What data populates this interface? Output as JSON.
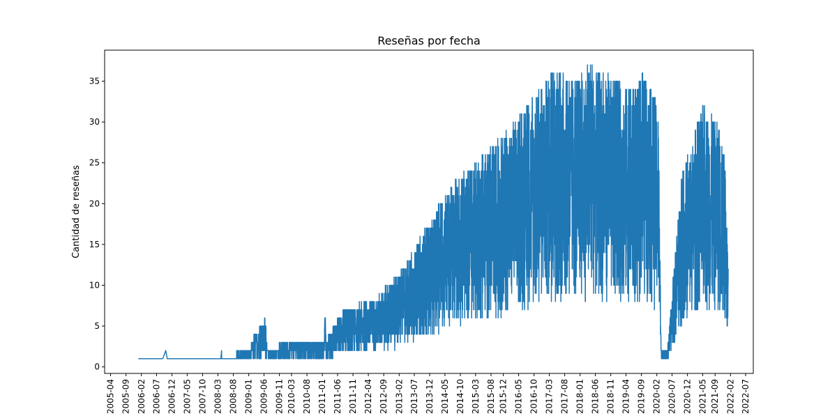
{
  "chart_data": {
    "type": "line",
    "title": "Reseñas por fecha",
    "xlabel": "",
    "ylabel": "Cantidad de reseñas",
    "grid": false,
    "legend": "none",
    "x_axis": {
      "type": "date",
      "range": [
        "2005-02-01",
        "2022-09-15"
      ],
      "tick_labels": [
        "2005-04",
        "2005-09",
        "2006-02",
        "2006-07",
        "2006-12",
        "2007-05",
        "2007-10",
        "2008-03",
        "2008-08",
        "2009-01",
        "2009-06",
        "2009-11",
        "2010-03",
        "2010-08",
        "2011-01",
        "2011-06",
        "2011-11",
        "2012-04",
        "2012-09",
        "2013-02",
        "2013-07",
        "2013-12",
        "2014-05",
        "2014-10",
        "2015-03",
        "2015-08",
        "2015-12",
        "2016-05",
        "2016-10",
        "2017-03",
        "2017-08",
        "2018-01",
        "2018-06",
        "2018-11",
        "2019-04",
        "2019-09",
        "2020-02",
        "2020-07",
        "2020-12",
        "2021-05",
        "2021-09",
        "2022-02",
        "2022-07"
      ]
    },
    "y_axis": {
      "range": [
        -0.8,
        38.8
      ],
      "ticks": [
        0,
        5,
        10,
        15,
        20,
        25,
        30,
        35
      ]
    },
    "series": [
      {
        "color": "#1f77b4",
        "x": [
          "2006-01-01",
          "2006-09-01",
          "2006-10-01",
          "2006-10-15",
          "2007-06-01",
          "2008-04-01",
          "2008-04-05",
          "2008-04-09",
          "2009-01-10",
          "2009-03-01",
          "2009-06-20",
          "2009-07-01",
          "2010-02-01",
          "2011-01-15",
          "2011-02-01",
          "2011-02-10",
          "2011-07-10",
          "2012-06-15",
          "2013-04-20",
          "2014-06-25",
          "2015-09-01",
          "2016-06-15",
          "2017-04-01",
          "2017-12-20",
          "2018-03-15",
          "2018-07-01",
          "2019-08-01",
          "2019-09-01",
          "2020-02-15",
          "2020-03-15",
          "2020-05-15",
          "2020-10-01",
          "2021-05-01",
          "2021-10-01",
          "2021-12-05",
          "2022-01-10"
        ],
        "y": [
          1,
          1,
          2,
          1,
          1,
          1,
          2,
          1,
          2,
          4,
          6,
          2,
          3,
          3,
          8,
          3,
          7,
          8,
          13,
          22,
          27,
          31,
          36,
          35,
          37,
          36,
          34,
          36,
          32,
          2,
          2,
          23,
          32,
          30,
          26,
          12
        ]
      }
    ]
  }
}
